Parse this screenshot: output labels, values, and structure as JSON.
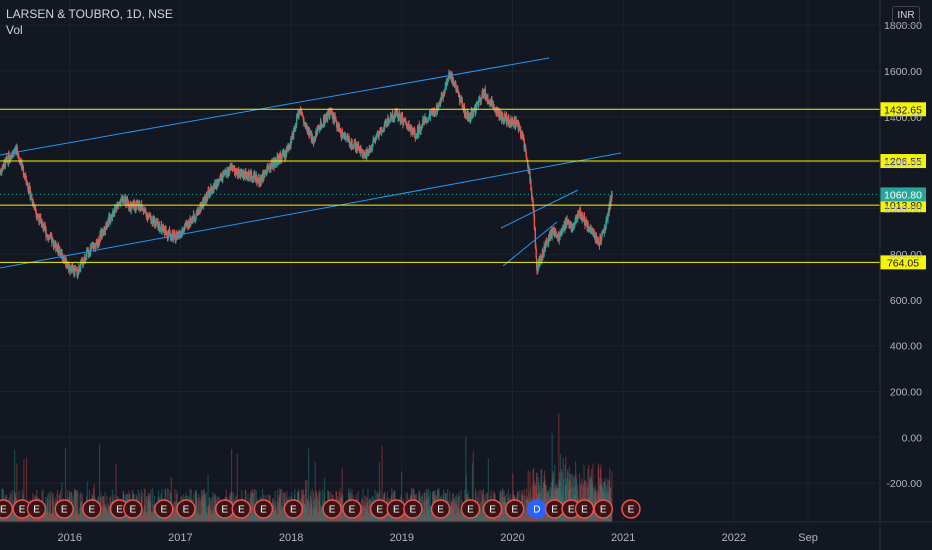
{
  "header": {
    "symbol": "LARSEN & TOUBRO, 1D, NSE",
    "volume_label": "Vol",
    "currency": "INR"
  },
  "colors": {
    "background": "#131722",
    "up": "#26a69a",
    "down": "#ef5350",
    "trendline": "#2196f3",
    "level": "#f5f500",
    "axis_text": "#b2b5be",
    "last_price_badge": "#26a69a",
    "earnings": "#ef5350",
    "dividend": "#2962ff"
  },
  "chart_data": {
    "type": "candlestick",
    "symbol": "LARSEN & TOUBRO",
    "interval": "1D",
    "exchange": "NSE",
    "y_ticks": [
      "1800.00",
      "1600.00",
      "1400.00",
      "1200.00",
      "1000.00",
      "800.00",
      "600.00",
      "400.00",
      "200.00",
      "0.00",
      "-200.00"
    ],
    "y_tick_values": [
      1800,
      1600,
      1400,
      1200,
      1000,
      800,
      600,
      400,
      200,
      0,
      -200
    ],
    "x_ticks": [
      "2016",
      "2017",
      "2018",
      "2019",
      "2020",
      "2021",
      "2022",
      "Sep"
    ],
    "x_tick_values": [
      2016.0,
      2017.0,
      2018.0,
      2019.0,
      2020.0,
      2021.0,
      2022.0,
      2022.67
    ],
    "ylim": [
      -370,
      1910
    ],
    "xlim": [
      2015.37,
      2023.32
    ],
    "horizontal_levels": [
      {
        "label": "1432.65",
        "value": 1432.65
      },
      {
        "label": "1206.55",
        "value": 1206.55
      },
      {
        "label": "1013.80",
        "value": 1013.8
      },
      {
        "label": "764.05",
        "value": 764.05
      }
    ],
    "last_price": {
      "label": "1060.80",
      "value": 1060.8
    },
    "price_path": [
      [
        2015.37,
        1160
      ],
      [
        2015.46,
        1230
      ],
      [
        2015.52,
        1260
      ],
      [
        2015.6,
        1130
      ],
      [
        2015.7,
        980
      ],
      [
        2015.8,
        880
      ],
      [
        2015.9,
        820
      ],
      [
        2016.0,
        740
      ],
      [
        2016.07,
        720
      ],
      [
        2016.15,
        800
      ],
      [
        2016.25,
        850
      ],
      [
        2016.32,
        920
      ],
      [
        2016.42,
        1010
      ],
      [
        2016.5,
        1040
      ],
      [
        2016.55,
        1000
      ],
      [
        2016.62,
        1020
      ],
      [
        2016.72,
        960
      ],
      [
        2016.85,
        900
      ],
      [
        2016.97,
        870
      ],
      [
        2017.05,
        920
      ],
      [
        2017.15,
        980
      ],
      [
        2017.25,
        1060
      ],
      [
        2017.35,
        1120
      ],
      [
        2017.45,
        1170
      ],
      [
        2017.55,
        1150
      ],
      [
        2017.65,
        1140
      ],
      [
        2017.72,
        1120
      ],
      [
        2017.8,
        1180
      ],
      [
        2017.88,
        1210
      ],
      [
        2017.95,
        1240
      ],
      [
        2018.02,
        1320
      ],
      [
        2018.08,
        1440
      ],
      [
        2018.13,
        1350
      ],
      [
        2018.2,
        1300
      ],
      [
        2018.28,
        1380
      ],
      [
        2018.36,
        1420
      ],
      [
        2018.45,
        1330
      ],
      [
        2018.55,
        1280
      ],
      [
        2018.62,
        1260
      ],
      [
        2018.68,
        1230
      ],
      [
        2018.75,
        1300
      ],
      [
        2018.85,
        1370
      ],
      [
        2018.95,
        1420
      ],
      [
        2019.05,
        1360
      ],
      [
        2019.12,
        1320
      ],
      [
        2019.2,
        1380
      ],
      [
        2019.3,
        1420
      ],
      [
        2019.38,
        1510
      ],
      [
        2019.43,
        1590
      ],
      [
        2019.48,
        1540
      ],
      [
        2019.53,
        1470
      ],
      [
        2019.6,
        1390
      ],
      [
        2019.67,
        1440
      ],
      [
        2019.74,
        1510
      ],
      [
        2019.82,
        1450
      ],
      [
        2019.9,
        1400
      ],
      [
        2019.97,
        1380
      ],
      [
        2020.04,
        1370
      ],
      [
        2020.1,
        1300
      ],
      [
        2020.15,
        1160
      ],
      [
        2020.19,
        1000
      ],
      [
        2020.22,
        740
      ],
      [
        2020.24,
        760
      ],
      [
        2020.3,
        840
      ],
      [
        2020.36,
        900
      ],
      [
        2020.42,
        870
      ],
      [
        2020.48,
        940
      ],
      [
        2020.54,
        920
      ],
      [
        2020.6,
        980
      ],
      [
        2020.66,
        940
      ],
      [
        2020.72,
        890
      ],
      [
        2020.78,
        850
      ],
      [
        2020.84,
        920
      ],
      [
        2020.87,
        1000
      ],
      [
        2020.9,
        1060.8
      ]
    ],
    "volume_baseline": -370
  },
  "event_markers": {
    "earnings_label": "E",
    "dividend_label": "D",
    "markers": [
      {
        "type": "E",
        "x": 2015.4
      },
      {
        "type": "E",
        "x": 2015.57
      },
      {
        "type": "E",
        "x": 2015.7
      },
      {
        "type": "E",
        "x": 2015.95
      },
      {
        "type": "E",
        "x": 2016.2
      },
      {
        "type": "E",
        "x": 2016.45
      },
      {
        "type": "E",
        "x": 2016.57
      },
      {
        "type": "E",
        "x": 2016.85
      },
      {
        "type": "E",
        "x": 2017.05
      },
      {
        "type": "E",
        "x": 2017.4
      },
      {
        "type": "E",
        "x": 2017.55
      },
      {
        "type": "E",
        "x": 2017.75
      },
      {
        "type": "E",
        "x": 2018.02
      },
      {
        "type": "E",
        "x": 2018.37
      },
      {
        "type": "E",
        "x": 2018.55
      },
      {
        "type": "E",
        "x": 2018.8
      },
      {
        "type": "E",
        "x": 2018.95
      },
      {
        "type": "E",
        "x": 2019.1
      },
      {
        "type": "E",
        "x": 2019.35
      },
      {
        "type": "E",
        "x": 2019.62
      },
      {
        "type": "E",
        "x": 2019.82
      },
      {
        "type": "E",
        "x": 2020.02
      },
      {
        "type": "D",
        "x": 2020.22
      },
      {
        "type": "E",
        "x": 2020.38
      },
      {
        "type": "E",
        "x": 2020.53
      },
      {
        "type": "E",
        "x": 2020.65
      },
      {
        "type": "E",
        "x": 2020.82
      },
      {
        "type": "E",
        "x": 2021.07
      }
    ]
  }
}
